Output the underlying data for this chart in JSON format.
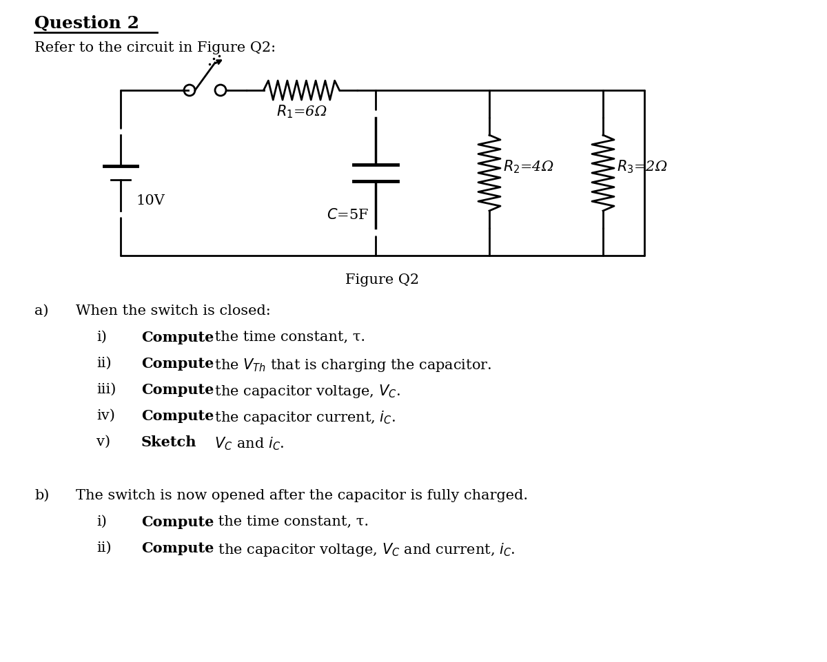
{
  "title": "Question 2",
  "subtitle": "Refer to the circuit in Figure Q2:",
  "figure_label": "Figure Q2",
  "voltage": "10V",
  "capacitor": "C=5F",
  "R1_label": "$R_1$=6Ω",
  "R2_label": "$R_2$=4Ω",
  "R3_label": "$R_3$=2Ω",
  "bg_color": "#ffffff",
  "text_color": "#000000",
  "body_fontsize": 14,
  "title_fontsize": 16
}
